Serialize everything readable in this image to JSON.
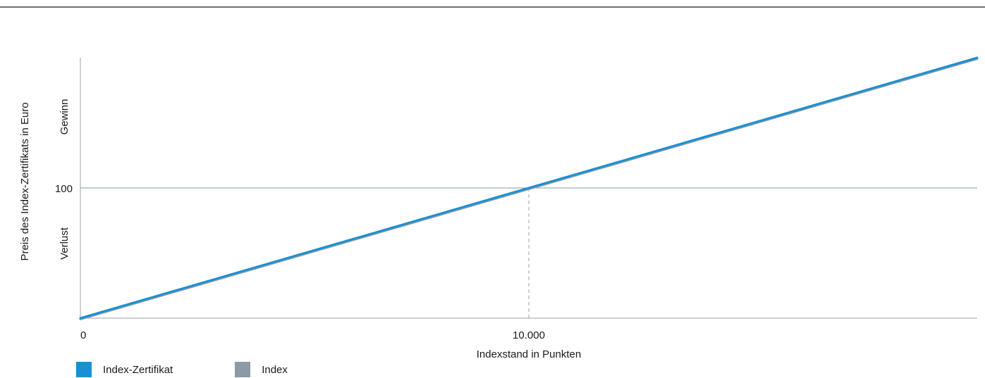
{
  "chart_data": {
    "type": "line",
    "xlabel": "Indexstand in Punkten",
    "ylabel": "Preis des Index-Zertifikats in Euro",
    "x_ticks": [
      {
        "value": 0,
        "label": "0"
      },
      {
        "value": 10000,
        "label": "10.000"
      }
    ],
    "y_ticks": [
      {
        "value": 100,
        "label": "100"
      }
    ],
    "xlim": [
      0,
      20000
    ],
    "ylim": [
      0,
      200
    ],
    "zones": {
      "upper": "Gewinn",
      "lower": "Verlust"
    },
    "reference": {
      "x": 10000,
      "y": 100
    },
    "series": [
      {
        "name": "Index",
        "x": [
          0,
          20000
        ],
        "y": [
          0,
          200
        ]
      },
      {
        "name": "Index-Zertifikat",
        "x": [
          0,
          20000
        ],
        "y": [
          0,
          200
        ]
      }
    ],
    "legend": [
      {
        "label": "Index-Zertifikat",
        "color": "#1a90d2"
      },
      {
        "label": "Index",
        "color": "#8d99a5"
      }
    ],
    "legend_placement": "bottom-left",
    "grid": false
  }
}
